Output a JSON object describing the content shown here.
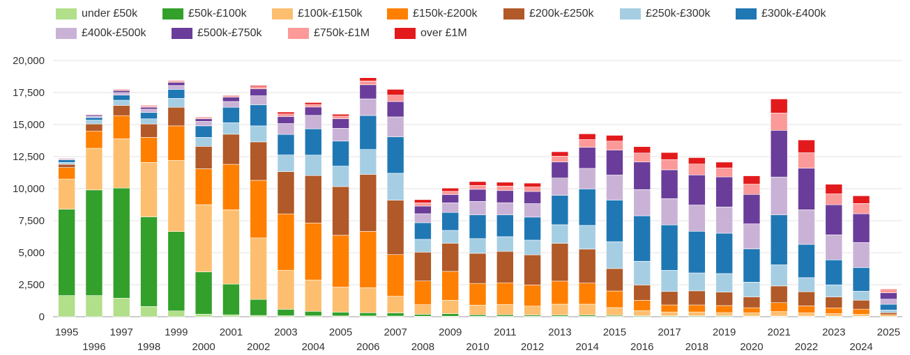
{
  "chart_data": {
    "type": "bar",
    "stacked": true,
    "title": "",
    "xlabel": "",
    "ylabel": "",
    "ylim": [
      0,
      20000
    ],
    "yticks": [
      "0",
      "2,500",
      "5,000",
      "7,500",
      "10,000",
      "12,500",
      "15,000",
      "17,500",
      "20,000"
    ],
    "ytick_values": [
      0,
      2500,
      5000,
      7500,
      10000,
      12500,
      15000,
      17500,
      20000
    ],
    "grid": true,
    "legend_position": "top",
    "categories": [
      "1995",
      "1996",
      "1997",
      "1998",
      "1999",
      "2000",
      "2001",
      "2002",
      "2003",
      "2004",
      "2005",
      "2006",
      "2007",
      "2008",
      "2009",
      "2010",
      "2011",
      "2012",
      "2013",
      "2014",
      "2015",
      "2016",
      "2017",
      "2018",
      "2019",
      "2020",
      "2021",
      "2022",
      "2023",
      "2024",
      "2025"
    ],
    "series": [
      {
        "name": "under £50k",
        "color": "#b2df8a",
        "values": [
          1650,
          1650,
          1450,
          800,
          450,
          200,
          150,
          100,
          80,
          70,
          60,
          60,
          50,
          40,
          40,
          30,
          30,
          30,
          30,
          30,
          30,
          20,
          20,
          20,
          20,
          20,
          20,
          20,
          20,
          20,
          10
        ]
      },
      {
        "name": "£50k-£100k",
        "color": "#33a02c",
        "values": [
          6750,
          8250,
          8600,
          7000,
          6200,
          3300,
          2400,
          1250,
          500,
          350,
          300,
          250,
          250,
          150,
          200,
          120,
          120,
          100,
          100,
          100,
          80,
          60,
          50,
          50,
          50,
          30,
          30,
          30,
          20,
          20,
          10
        ]
      },
      {
        "name": "£100k-£150k",
        "color": "#fdbf6f",
        "values": [
          2350,
          3250,
          3850,
          4250,
          5550,
          5250,
          5800,
          4800,
          3050,
          2450,
          1950,
          1950,
          1300,
          750,
          1050,
          750,
          800,
          700,
          850,
          850,
          600,
          400,
          300,
          300,
          250,
          250,
          350,
          250,
          200,
          150,
          50
        ]
      },
      {
        "name": "£150k-£200k",
        "color": "#ff7f00",
        "values": [
          900,
          1350,
          1800,
          1950,
          2700,
          2800,
          3550,
          4500,
          4400,
          4450,
          4050,
          4400,
          3250,
          1850,
          2250,
          1700,
          1700,
          1650,
          1800,
          1650,
          1300,
          800,
          550,
          550,
          550,
          400,
          700,
          550,
          450,
          400,
          100
        ]
      },
      {
        "name": "£200k-£250k",
        "color": "#b15928",
        "values": [
          250,
          550,
          800,
          1050,
          1450,
          1750,
          2350,
          3000,
          3300,
          3700,
          3800,
          4450,
          4250,
          2250,
          2200,
          2350,
          2450,
          2350,
          2950,
          2650,
          1750,
          1200,
          1050,
          1100,
          1050,
          850,
          1300,
          1100,
          850,
          700,
          150
        ]
      },
      {
        "name": "£250k-£300k",
        "color": "#a6cee3",
        "values": [
          150,
          300,
          400,
          400,
          700,
          700,
          900,
          1250,
          1300,
          1600,
          1600,
          1950,
          2100,
          1000,
          1000,
          1150,
          1150,
          1150,
          1450,
          1850,
          2100,
          1850,
          1650,
          1400,
          1450,
          1150,
          1650,
          1100,
          950,
          700,
          200
        ]
      },
      {
        "name": "£300k-£400k",
        "color": "#1f78b4",
        "values": [
          200,
          200,
          400,
          500,
          700,
          900,
          1200,
          1650,
          1600,
          2050,
          1950,
          2650,
          2850,
          1300,
          1400,
          1850,
          1700,
          1800,
          2300,
          2850,
          3250,
          3550,
          3550,
          3250,
          3150,
          2600,
          3900,
          2600,
          1950,
          1850,
          450
        ]
      },
      {
        "name": "£400k-£500k",
        "color": "#cab2d6",
        "values": [
          50,
          100,
          200,
          250,
          300,
          350,
          450,
          700,
          850,
          1050,
          1000,
          1300,
          1550,
          700,
          750,
          1050,
          950,
          1050,
          1350,
          1600,
          1950,
          2050,
          2050,
          2050,
          2050,
          1950,
          2950,
          2700,
          1950,
          1950,
          400
        ]
      },
      {
        "name": "£500k-£750k",
        "color": "#6a3d9a",
        "values": [
          50,
          100,
          150,
          150,
          250,
          200,
          350,
          550,
          550,
          650,
          750,
          1100,
          1200,
          600,
          650,
          950,
          950,
          950,
          1250,
          1650,
          1950,
          2150,
          2250,
          2350,
          2350,
          2300,
          3650,
          3250,
          2350,
          2250,
          500
        ]
      },
      {
        "name": "£750k-£1M",
        "color": "#fb9a99",
        "values": [
          50,
          50,
          100,
          100,
          100,
          100,
          100,
          150,
          200,
          200,
          200,
          300,
          500,
          250,
          250,
          300,
          350,
          350,
          450,
          600,
          700,
          700,
          800,
          850,
          700,
          800,
          1350,
          1200,
          850,
          800,
          300
        ]
      },
      {
        "name": "over £1M",
        "color": "#e31a1c",
        "values": [
          20,
          30,
          40,
          50,
          50,
          50,
          50,
          100,
          150,
          150,
          150,
          250,
          450,
          250,
          250,
          300,
          300,
          300,
          350,
          450,
          450,
          500,
          550,
          500,
          450,
          650,
          1100,
          1000,
          750,
          600,
          0
        ]
      }
    ]
  }
}
